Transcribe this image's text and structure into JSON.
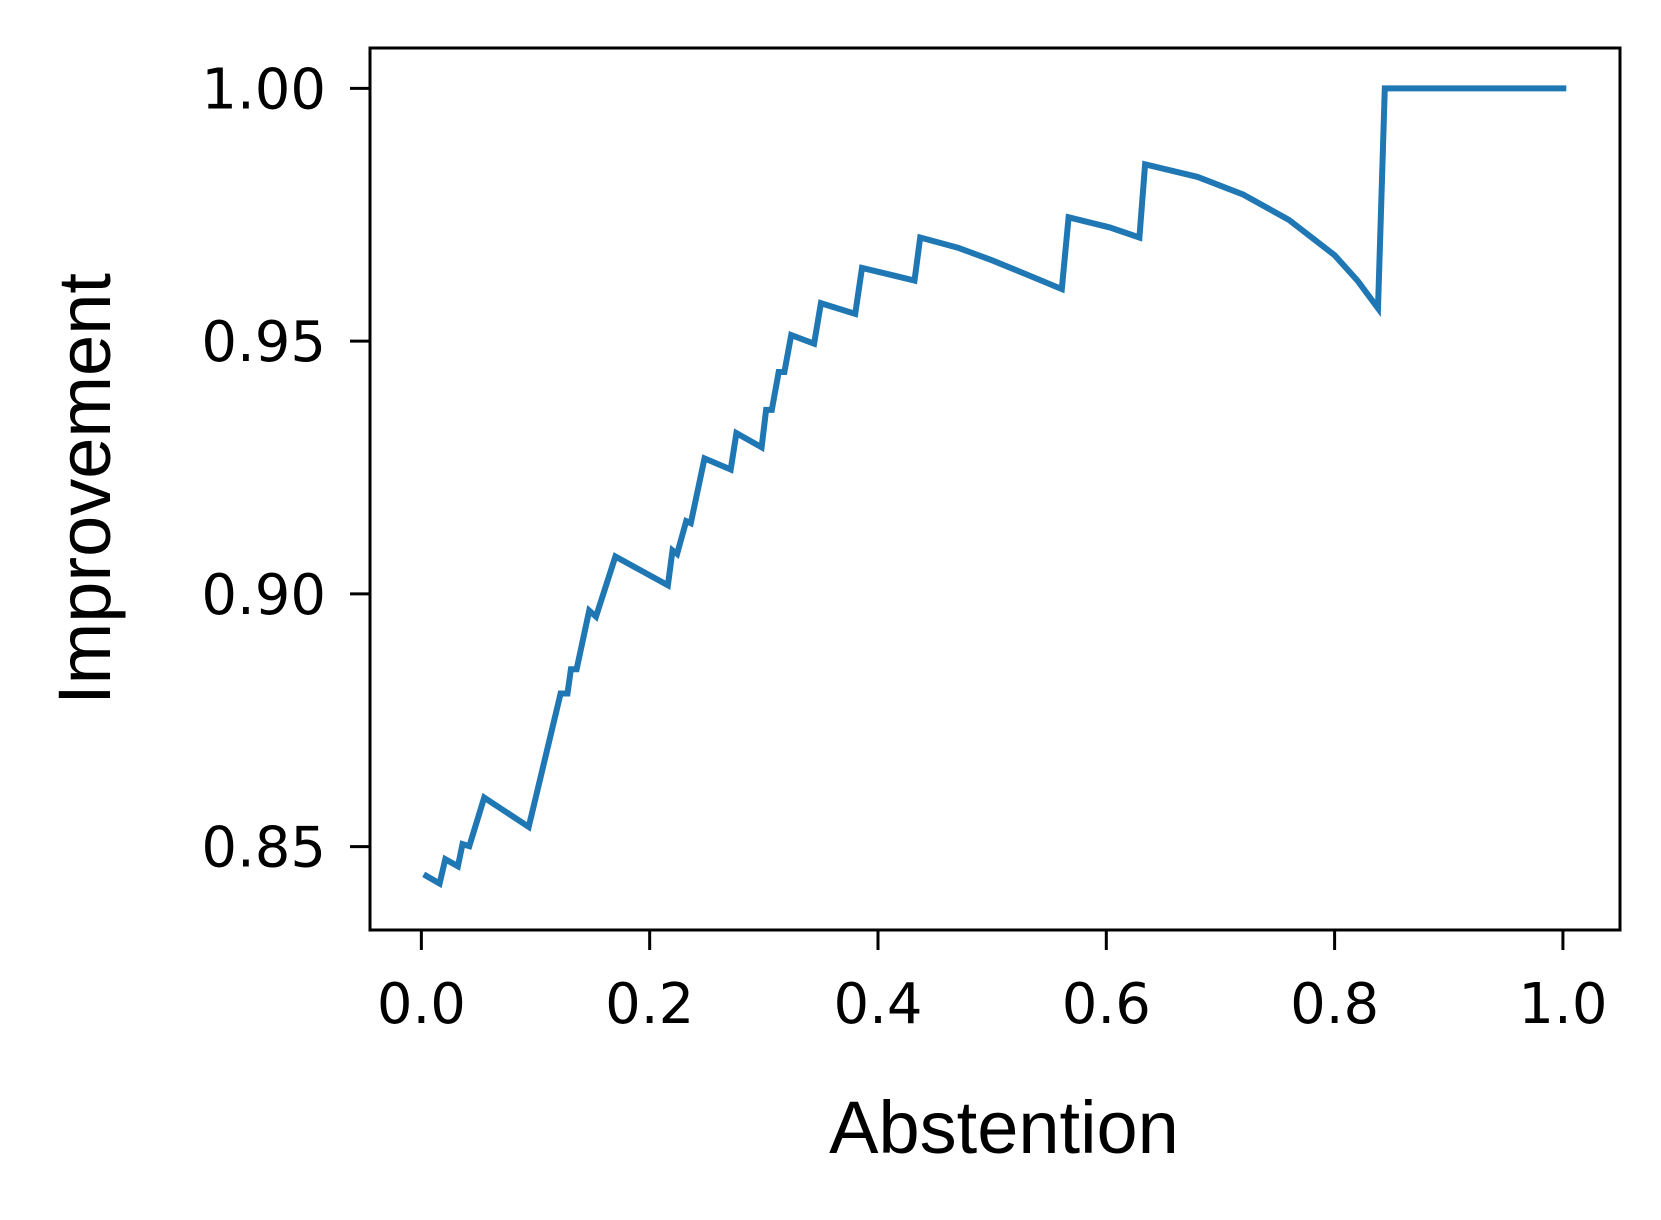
{
  "chart_data": {
    "type": "line",
    "title": "",
    "xlabel": "Abstention",
    "ylabel": "Improvement",
    "xlim": [
      -0.045,
      1.05
    ],
    "ylim": [
      0.8335,
      1.008
    ],
    "grid": false,
    "legend": "none",
    "x_ticks": [
      0.0,
      0.2,
      0.4,
      0.6,
      0.8,
      1.0
    ],
    "x_tick_labels": [
      "0.0",
      "0.2",
      "0.4",
      "0.6",
      "0.8",
      "1.0"
    ],
    "y_ticks": [
      0.85,
      0.9,
      0.95,
      1.0
    ],
    "y_tick_labels": [
      "0.85",
      "0.90",
      "0.95",
      "1.00"
    ],
    "series": [
      {
        "color": "#1f77b4",
        "x": [
          0.002,
          0.016,
          0.021,
          0.032,
          0.036,
          0.042,
          0.055,
          0.094,
          0.122,
          0.128,
          0.131,
          0.136,
          0.147,
          0.153,
          0.17,
          0.216,
          0.22,
          0.224,
          0.232,
          0.236,
          0.248,
          0.271,
          0.276,
          0.298,
          0.302,
          0.307,
          0.313,
          0.318,
          0.324,
          0.344,
          0.35,
          0.38,
          0.386,
          0.432,
          0.437,
          0.47,
          0.5,
          0.53,
          0.561,
          0.567,
          0.603,
          0.629,
          0.634,
          0.68,
          0.72,
          0.76,
          0.8,
          0.82,
          0.838,
          0.844,
          1.003
        ],
        "y": [
          0.8445,
          0.8427,
          0.8475,
          0.8461,
          0.8505,
          0.8501,
          0.8597,
          0.8539,
          0.8803,
          0.8803,
          0.8851,
          0.8851,
          0.8967,
          0.8955,
          0.9074,
          0.9017,
          0.9086,
          0.9079,
          0.9144,
          0.914,
          0.9268,
          0.9246,
          0.9318,
          0.929,
          0.9364,
          0.9364,
          0.9439,
          0.9439,
          0.9512,
          0.9495,
          0.9575,
          0.9554,
          0.9645,
          0.962,
          0.9705,
          0.9685,
          0.966,
          0.9632,
          0.9603,
          0.9745,
          0.9725,
          0.9705,
          0.985,
          0.9825,
          0.979,
          0.974,
          0.967,
          0.962,
          0.9565,
          1.0,
          1.0
        ]
      }
    ]
  }
}
